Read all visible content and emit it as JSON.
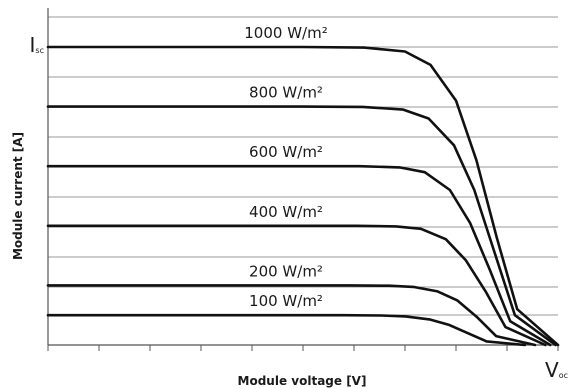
{
  "chart_data": {
    "type": "line",
    "title": "",
    "xlabel": "Module voltage [V]",
    "ylabel": "Module current [A]",
    "grid": true,
    "y_marker": {
      "main": "I",
      "sub": "sc"
    },
    "x_marker": {
      "main": "V",
      "sub": "oc"
    },
    "series": [
      {
        "name": "1000 W/m²",
        "values": [
          1.0,
          1.0,
          1.0,
          1.0,
          1.0,
          1.0,
          0.998,
          0.985,
          0.94,
          0.82,
          0.62,
          0.36,
          0.12,
          0.0
        ]
      },
      {
        "name": "800 W/m²",
        "values": [
          0.8,
          0.8,
          0.8,
          0.8,
          0.8,
          0.8,
          0.799,
          0.79,
          0.76,
          0.67,
          0.52,
          0.31,
          0.1,
          0.0
        ]
      },
      {
        "name": "600 W/m²",
        "values": [
          0.6,
          0.6,
          0.6,
          0.6,
          0.6,
          0.6,
          0.6,
          0.596,
          0.58,
          0.52,
          0.41,
          0.25,
          0.08,
          0.0
        ]
      },
      {
        "name": "400 W/m²",
        "values": [
          0.4,
          0.4,
          0.4,
          0.4,
          0.4,
          0.4,
          0.4,
          0.398,
          0.39,
          0.355,
          0.285,
          0.18,
          0.06,
          0.0
        ]
      },
      {
        "name": "200 W/m²",
        "values": [
          0.2,
          0.2,
          0.2,
          0.2,
          0.2,
          0.2,
          0.2,
          0.199,
          0.195,
          0.18,
          0.15,
          0.095,
          0.03,
          0.0
        ]
      },
      {
        "name": "100 W/m²",
        "values": [
          0.1,
          0.1,
          0.1,
          0.1,
          0.1,
          0.1,
          0.1,
          0.099,
          0.096,
          0.086,
          0.068,
          0.04,
          0.012,
          0.0
        ]
      }
    ],
    "x_fraction": [
      0.0,
      0.1,
      0.2,
      0.3,
      0.4,
      0.5,
      0.62,
      0.7,
      0.75,
      0.8,
      0.84,
      0.88,
      0.92,
      1.0
    ],
    "voc_fraction": [
      1.0,
      0.995,
      0.985,
      0.975,
      0.955,
      0.935
    ]
  }
}
